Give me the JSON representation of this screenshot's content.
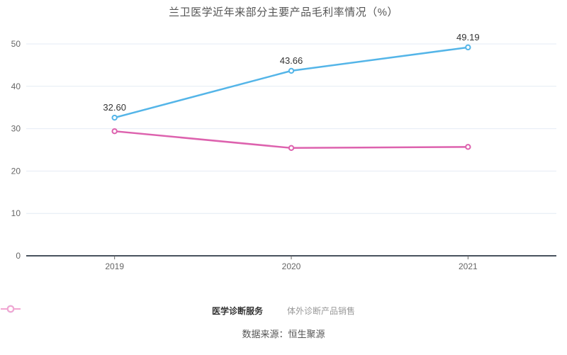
{
  "source_label": "数据来源：恒生聚源",
  "colors": {
    "background": "#ffffff",
    "title_text": "#555555",
    "grid_line": "#e4ebf4",
    "axis_line": "#49525e",
    "tick_text": "#666666",
    "data_label_text": "#333333",
    "source_text": "#555555"
  },
  "chart_data": {
    "type": "line",
    "title": "兰卫医学近年来部分主要产品毛利率情况（%）",
    "categories": [
      "2019",
      "2020",
      "2021"
    ],
    "series": [
      {
        "name": "医学诊断服务",
        "color": "#54b5e8",
        "values": [
          32.6,
          43.66,
          49.19
        ],
        "point_labels": [
          "32.60",
          "43.66",
          "49.19"
        ],
        "show_labels": true,
        "legend_marker_color": "#54b5e8",
        "legend_text_color": "#333333",
        "legend_bold": true
      },
      {
        "name": "体外诊断产品销售",
        "color": "#dd62ae",
        "values": [
          29.4,
          25.45,
          25.7
        ],
        "point_labels": [],
        "show_labels": false,
        "legend_marker_color": "#f2a6d2",
        "legend_text_color": "#999999",
        "legend_bold": false
      }
    ],
    "y_ticks": [
      0,
      10,
      20,
      30,
      40,
      50
    ],
    "ylim": [
      0,
      50
    ],
    "grid": true,
    "legend_position": "bottom",
    "xlabel": "",
    "ylabel": ""
  }
}
